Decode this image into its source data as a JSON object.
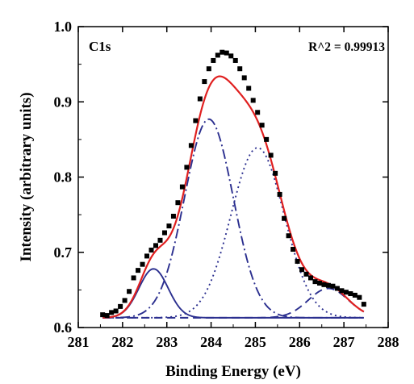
{
  "chart_data": {
    "type": "line",
    "annotation_left": "C1s",
    "annotation_right": "R^2 = 0.99913",
    "xlabel": "Binding Energy (eV)",
    "ylabel": "Intensity (arbitrary units)",
    "xlim": [
      281,
      288
    ],
    "ylim": [
      0.6,
      1.0
    ],
    "xticks": [
      281,
      282,
      283,
      284,
      285,
      286,
      287,
      288
    ],
    "xtick_labels": [
      "281",
      "282",
      "283",
      "284",
      "285",
      "286",
      "287",
      "288"
    ],
    "yticks": [
      0.6,
      0.7,
      0.8,
      0.9,
      1.0
    ],
    "ytick_labels": [
      "0.6",
      "0.7",
      "0.8",
      "0.9",
      "1.0"
    ],
    "grid": false,
    "colors": {
      "data": "#000000",
      "envelope": "#e02020",
      "components": "#2b2f8f"
    },
    "baseline": 0.613,
    "components": [
      {
        "center": 282.7,
        "height": 0.678,
        "sigma": 0.33,
        "style": "solid"
      },
      {
        "center": 283.95,
        "height": 0.877,
        "sigma": 0.55,
        "style": "dashdot"
      },
      {
        "center": 285.05,
        "height": 0.839,
        "sigma": 0.6,
        "style": "dotted"
      },
      {
        "center": 286.65,
        "height": 0.652,
        "sigma": 0.45,
        "style": "dashed"
      }
    ],
    "series": [
      {
        "style": "markers",
        "x": [
          281.55,
          281.65,
          281.75,
          281.85,
          281.95,
          282.05,
          282.15,
          282.25,
          282.35,
          282.45,
          282.55,
          282.65,
          282.75,
          282.85,
          282.95,
          283.05,
          283.15,
          283.25,
          283.35,
          283.45,
          283.55,
          283.65,
          283.75,
          283.85,
          283.95,
          284.05,
          284.15,
          284.25,
          284.35,
          284.45,
          284.55,
          284.65,
          284.75,
          284.85,
          284.95,
          285.05,
          285.15,
          285.25,
          285.35,
          285.45,
          285.55,
          285.65,
          285.75,
          285.85,
          285.95,
          286.05,
          286.15,
          286.25,
          286.35,
          286.45,
          286.55,
          286.65,
          286.75,
          286.85,
          286.95,
          287.05,
          287.15,
          287.25,
          287.35,
          287.45
        ],
        "y": [
          0.617,
          0.616,
          0.62,
          0.622,
          0.628,
          0.636,
          0.648,
          0.666,
          0.676,
          0.684,
          0.695,
          0.703,
          0.709,
          0.716,
          0.726,
          0.735,
          0.748,
          0.766,
          0.787,
          0.813,
          0.842,
          0.875,
          0.904,
          0.927,
          0.944,
          0.955,
          0.962,
          0.966,
          0.965,
          0.961,
          0.955,
          0.944,
          0.932,
          0.918,
          0.902,
          0.886,
          0.869,
          0.85,
          0.829,
          0.805,
          0.777,
          0.745,
          0.722,
          0.704,
          0.688,
          0.677,
          0.671,
          0.666,
          0.661,
          0.659,
          0.657,
          0.656,
          0.655,
          0.652,
          0.649,
          0.647,
          0.645,
          0.643,
          0.64,
          0.631
        ]
      }
    ]
  }
}
